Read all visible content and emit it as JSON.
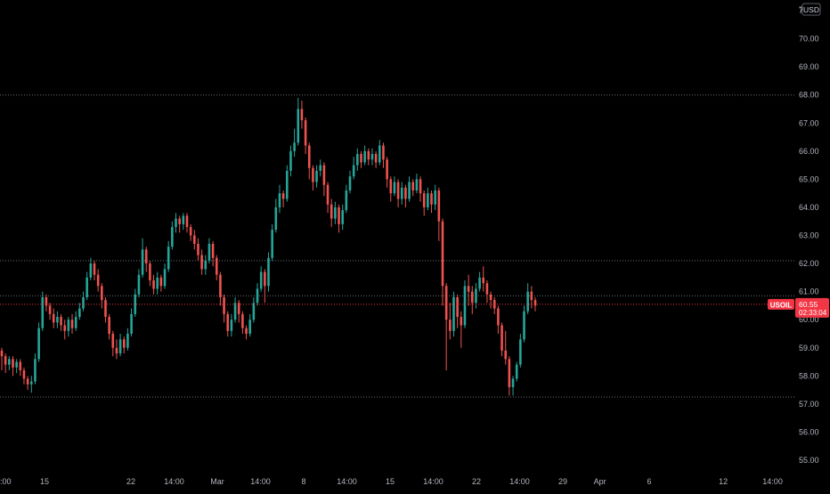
{
  "chart_data": {
    "type": "candlestick",
    "currency": "USD",
    "yaxis": {
      "ticks": [
        "55.00",
        "56.00",
        "57.00",
        "58.00",
        "59.00",
        "60.00",
        "61.00",
        "62.00",
        "63.00",
        "64.00",
        "65.00",
        "66.00",
        "67.00",
        "68.00",
        "69.00",
        "70.00",
        "71.00"
      ],
      "ylim": [
        54.5,
        72.2
      ],
      "top_partial_label": "7"
    },
    "xaxis": {
      "ticks": [
        {
          "label": "15",
          "day": 15
        },
        {
          "label": "22",
          "day": 22
        },
        {
          "label": "14:00",
          "day": 25.5
        },
        {
          "label": "Mar",
          "day": 29
        },
        {
          "label": "14:00",
          "day": 32.5
        },
        {
          "label": "8",
          "day": 36
        },
        {
          "label": "14:00",
          "day": 39.5
        },
        {
          "label": "15",
          "day": 43
        },
        {
          "label": "14:00",
          "day": 46.5
        },
        {
          "label": "22",
          "day": 50
        },
        {
          "label": "14:00",
          "day": 53.5
        },
        {
          "label": "29",
          "day": 57
        },
        {
          "label": "Apr",
          "day": 60
        },
        {
          "label": "6",
          "day": 64
        },
        {
          "label": "12",
          "day": 70
        },
        {
          "label": "14:00",
          "day": 74
        }
      ],
      "left_partial_label": ":00"
    },
    "levels": [
      68.0,
      62.1,
      60.85,
      57.25
    ],
    "current_price": {
      "symbol": "USOIL",
      "value": "60.55",
      "countdown": "02:33:04",
      "price": 60.55,
      "color": "#f23645"
    },
    "colors": {
      "up": "#26a69a",
      "down": "#ef5350",
      "background": "#000000"
    },
    "candles": [
      [
        58.9,
        58.7,
        59.0,
        58.2
      ],
      [
        58.7,
        58.4,
        58.8,
        58.1
      ],
      [
        58.4,
        58.6,
        58.7,
        58.2
      ],
      [
        58.6,
        58.3,
        58.7,
        58.0
      ],
      [
        58.3,
        58.5,
        58.6,
        58.1
      ],
      [
        58.5,
        58.2,
        58.6,
        58.0
      ],
      [
        58.2,
        57.9,
        58.3,
        57.7
      ],
      [
        57.9,
        57.7,
        58.0,
        57.5
      ],
      [
        57.7,
        57.8,
        58.0,
        57.4
      ],
      [
        57.8,
        58.6,
        58.8,
        57.7
      ],
      [
        58.6,
        59.7,
        59.9,
        58.5
      ],
      [
        59.7,
        60.8,
        61.0,
        59.6
      ],
      [
        60.8,
        60.5,
        60.9,
        60.3
      ],
      [
        60.5,
        60.2,
        60.6,
        60.0
      ],
      [
        60.2,
        59.9,
        60.4,
        59.7
      ],
      [
        59.9,
        60.1,
        60.3,
        59.7
      ],
      [
        60.1,
        59.8,
        60.2,
        59.6
      ],
      [
        59.8,
        59.6,
        60.0,
        59.3
      ],
      [
        59.6,
        60.0,
        60.1,
        59.4
      ],
      [
        60.0,
        59.7,
        60.2,
        59.5
      ],
      [
        59.7,
        60.1,
        60.3,
        59.6
      ],
      [
        60.1,
        60.4,
        60.6,
        60.0
      ],
      [
        60.4,
        60.8,
        61.0,
        60.3
      ],
      [
        60.8,
        61.5,
        61.7,
        60.7
      ],
      [
        61.5,
        62.0,
        62.2,
        61.4
      ],
      [
        62.0,
        61.6,
        62.1,
        61.4
      ],
      [
        61.6,
        61.2,
        61.8,
        61.0
      ],
      [
        61.2,
        60.7,
        61.3,
        60.4
      ],
      [
        60.7,
        60.1,
        60.8,
        59.9
      ],
      [
        60.1,
        59.5,
        60.2,
        59.3
      ],
      [
        59.5,
        59.0,
        59.6,
        58.7
      ],
      [
        59.0,
        58.8,
        59.3,
        58.6
      ],
      [
        58.8,
        59.3,
        59.5,
        58.7
      ],
      [
        59.3,
        59.0,
        59.4,
        58.8
      ],
      [
        59.0,
        59.5,
        59.7,
        58.9
      ],
      [
        59.5,
        60.2,
        60.4,
        59.4
      ],
      [
        60.2,
        60.9,
        61.1,
        60.1
      ],
      [
        60.9,
        61.6,
        61.8,
        60.8
      ],
      [
        61.6,
        62.5,
        62.9,
        61.5
      ],
      [
        62.5,
        62.0,
        62.6,
        61.7
      ],
      [
        62.0,
        61.4,
        62.1,
        61.2
      ],
      [
        61.4,
        61.1,
        61.6,
        60.9
      ],
      [
        61.1,
        61.5,
        61.7,
        60.9
      ],
      [
        61.5,
        61.2,
        61.6,
        61.0
      ],
      [
        61.2,
        61.8,
        62.0,
        61.1
      ],
      [
        61.8,
        62.6,
        62.8,
        61.7
      ],
      [
        62.6,
        63.3,
        63.5,
        62.5
      ],
      [
        63.3,
        63.6,
        63.8,
        63.1
      ],
      [
        63.6,
        63.4,
        63.7,
        63.1
      ],
      [
        63.4,
        63.7,
        63.8,
        63.2
      ],
      [
        63.7,
        63.3,
        63.8,
        63.1
      ],
      [
        63.3,
        63.0,
        63.4,
        62.8
      ],
      [
        63.0,
        62.7,
        63.2,
        62.5
      ],
      [
        62.7,
        62.3,
        62.9,
        62.1
      ],
      [
        62.3,
        61.8,
        62.5,
        61.6
      ],
      [
        61.8,
        62.1,
        62.3,
        61.6
      ],
      [
        62.1,
        62.7,
        62.9,
        62.0
      ],
      [
        62.7,
        62.2,
        62.8,
        61.9
      ],
      [
        62.2,
        61.6,
        62.3,
        61.4
      ],
      [
        61.6,
        60.8,
        61.7,
        60.5
      ],
      [
        60.8,
        60.2,
        60.9,
        59.9
      ],
      [
        60.2,
        59.6,
        60.3,
        59.4
      ],
      [
        59.6,
        60.0,
        60.2,
        59.4
      ],
      [
        60.0,
        60.6,
        60.8,
        59.9
      ],
      [
        60.6,
        60.2,
        60.7,
        59.9
      ],
      [
        60.2,
        59.7,
        60.3,
        59.5
      ],
      [
        59.7,
        59.5,
        59.8,
        59.3
      ],
      [
        59.5,
        60.0,
        60.2,
        59.4
      ],
      [
        60.0,
        60.6,
        60.8,
        59.9
      ],
      [
        60.6,
        61.1,
        61.3,
        60.5
      ],
      [
        61.1,
        61.7,
        61.9,
        61.0
      ],
      [
        61.7,
        61.2,
        61.8,
        60.6
      ],
      [
        61.2,
        62.2,
        62.4,
        61.0
      ],
      [
        62.2,
        63.2,
        63.4,
        62.1
      ],
      [
        63.2,
        64.0,
        64.3,
        63.1
      ],
      [
        64.0,
        64.5,
        64.8,
        63.8
      ],
      [
        64.5,
        64.3,
        64.6,
        64.0
      ],
      [
        64.3,
        65.3,
        65.5,
        64.2
      ],
      [
        65.3,
        66.0,
        66.2,
        65.1
      ],
      [
        66.0,
        66.3,
        66.8,
        65.8
      ],
      [
        66.3,
        67.5,
        67.9,
        66.2
      ],
      [
        67.5,
        67.1,
        67.8,
        66.8
      ],
      [
        67.1,
        66.2,
        67.2,
        65.9
      ],
      [
        66.2,
        65.4,
        66.3,
        65.0
      ],
      [
        65.4,
        64.9,
        65.5,
        64.6
      ],
      [
        64.9,
        65.3,
        65.5,
        64.7
      ],
      [
        65.3,
        65.5,
        65.7,
        65.1
      ],
      [
        65.5,
        64.8,
        65.6,
        64.4
      ],
      [
        64.8,
        64.1,
        64.9,
        63.8
      ],
      [
        64.1,
        63.6,
        64.3,
        63.3
      ],
      [
        63.6,
        64.0,
        64.2,
        63.4
      ],
      [
        64.0,
        63.4,
        64.1,
        63.1
      ],
      [
        63.4,
        63.9,
        64.1,
        63.2
      ],
      [
        63.9,
        64.6,
        64.8,
        63.8
      ],
      [
        64.6,
        65.1,
        65.3,
        64.5
      ],
      [
        65.1,
        65.5,
        65.8,
        65.0
      ],
      [
        65.5,
        65.9,
        66.1,
        65.3
      ],
      [
        65.9,
        65.6,
        66.0,
        65.4
      ],
      [
        65.6,
        66.0,
        66.2,
        65.5
      ],
      [
        66.0,
        65.7,
        66.1,
        65.5
      ],
      [
        65.7,
        65.9,
        66.1,
        65.5
      ],
      [
        65.9,
        65.6,
        66.0,
        65.4
      ],
      [
        65.6,
        66.2,
        66.4,
        65.5
      ],
      [
        66.2,
        65.7,
        66.3,
        65.4
      ],
      [
        65.7,
        65.0,
        65.8,
        64.7
      ],
      [
        65.0,
        64.5,
        65.1,
        64.2
      ],
      [
        64.5,
        64.9,
        65.1,
        64.4
      ],
      [
        64.9,
        64.3,
        65.0,
        64.0
      ],
      [
        64.3,
        64.7,
        64.9,
        64.1
      ],
      [
        64.7,
        64.3,
        64.8,
        64.0
      ],
      [
        64.3,
        64.9,
        65.1,
        64.2
      ],
      [
        64.9,
        64.6,
        65.0,
        64.4
      ],
      [
        64.6,
        65.0,
        65.2,
        64.5
      ],
      [
        65.0,
        64.5,
        65.1,
        64.2
      ],
      [
        64.5,
        64.0,
        64.6,
        63.7
      ],
      [
        64.0,
        64.5,
        64.7,
        63.9
      ],
      [
        64.5,
        64.1,
        64.6,
        63.8
      ],
      [
        64.1,
        64.6,
        64.8,
        63.9
      ],
      [
        64.6,
        63.5,
        64.7,
        62.8
      ],
      [
        63.5,
        61.2,
        63.6,
        60.5
      ],
      [
        61.2,
        60.0,
        61.3,
        58.2
      ],
      [
        60.0,
        59.6,
        60.6,
        59.3
      ],
      [
        59.6,
        60.8,
        61.0,
        59.4
      ],
      [
        60.8,
        60.1,
        60.9,
        59.7
      ],
      [
        60.1,
        59.8,
        60.3,
        59.0
      ],
      [
        59.8,
        61.2,
        61.4,
        59.7
      ],
      [
        61.2,
        61.0,
        61.6,
        60.5
      ],
      [
        61.0,
        60.6,
        61.2,
        60.2
      ],
      [
        60.6,
        61.1,
        61.3,
        60.4
      ],
      [
        61.1,
        61.5,
        61.7,
        61.0
      ],
      [
        61.5,
        61.3,
        61.9,
        61.0
      ],
      [
        61.3,
        60.9,
        61.4,
        60.6
      ],
      [
        60.9,
        60.7,
        61.0,
        60.4
      ],
      [
        60.7,
        60.4,
        60.8,
        60.2
      ],
      [
        60.4,
        59.8,
        60.5,
        59.5
      ],
      [
        59.8,
        58.9,
        59.9,
        58.7
      ],
      [
        58.9,
        58.6,
        59.6,
        58.4
      ],
      [
        58.6,
        57.6,
        58.7,
        57.3
      ],
      [
        57.6,
        57.9,
        58.0,
        57.3
      ],
      [
        57.9,
        58.4,
        58.5,
        57.8
      ],
      [
        58.4,
        59.3,
        59.5,
        58.3
      ],
      [
        59.3,
        60.3,
        60.5,
        59.2
      ],
      [
        60.3,
        61.0,
        61.3,
        60.2
      ],
      [
        61.0,
        60.7,
        61.2,
        60.4
      ],
      [
        60.7,
        60.5,
        60.8,
        60.3
      ]
    ]
  }
}
